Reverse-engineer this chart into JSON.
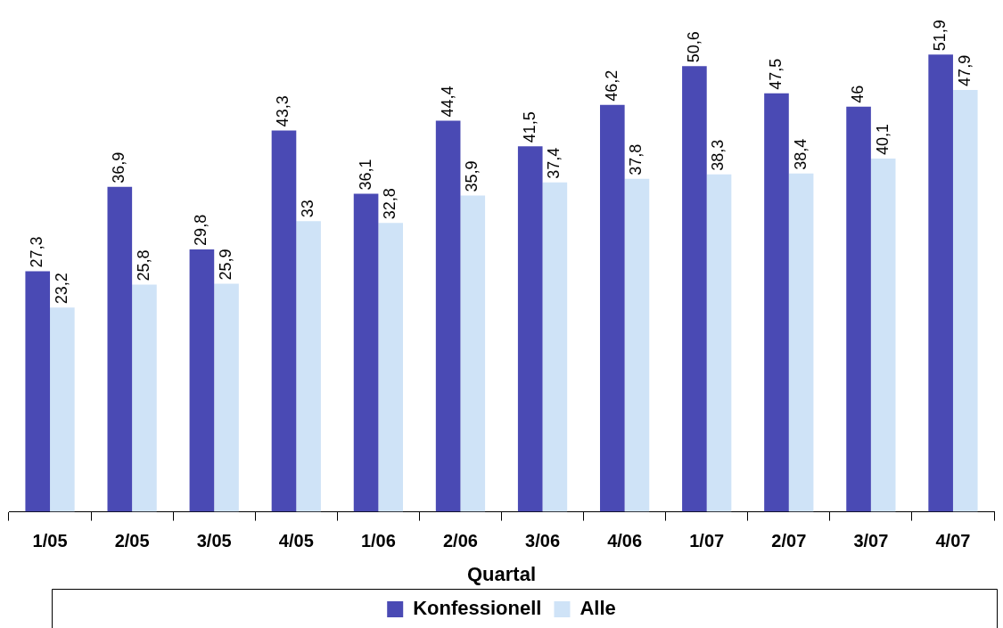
{
  "chart_data": {
    "type": "bar",
    "xlabel": "Quartal",
    "categories": [
      "1/05",
      "2/05",
      "3/05",
      "4/05",
      "1/06",
      "2/06",
      "3/06",
      "4/06",
      "1/07",
      "2/07",
      "3/07",
      "4/07"
    ],
    "series": [
      {
        "name": "Konfessionell",
        "color": "#4a4ab4",
        "values": [
          27.3,
          36.9,
          29.8,
          43.3,
          36.1,
          44.4,
          41.5,
          46.2,
          50.6,
          47.5,
          46,
          51.9
        ],
        "value_labels": [
          "27,3",
          "36,9",
          "29,8",
          "43,3",
          "36,1",
          "44,4",
          "41,5",
          "46,2",
          "50,6",
          "47,5",
          "46",
          "51,9"
        ]
      },
      {
        "name": "Alle",
        "color": "#cfe3f7",
        "values": [
          23.2,
          25.8,
          25.9,
          33,
          32.8,
          35.9,
          37.4,
          37.8,
          38.3,
          38.4,
          40.1,
          47.9
        ],
        "value_labels": [
          "23,2",
          "25,8",
          "25,9",
          "33",
          "32,8",
          "35,9",
          "37,4",
          "37,8",
          "38,3",
          "38,4",
          "40,1",
          "47,9"
        ]
      }
    ],
    "legend": "bottom",
    "grid": false
  }
}
